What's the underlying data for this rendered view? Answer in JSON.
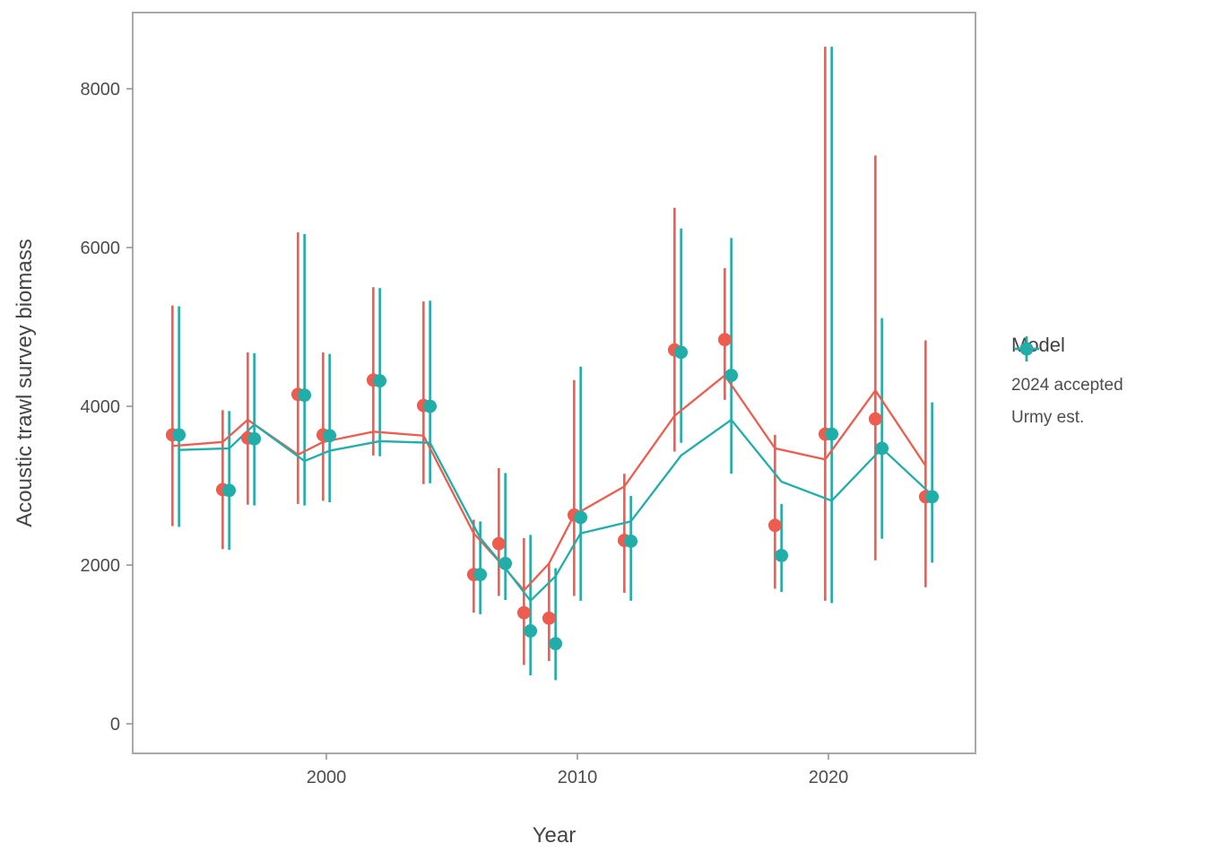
{
  "axes": {
    "x": {
      "label": "Year",
      "ticks": [
        {
          "value": 2000,
          "label": "2000"
        },
        {
          "value": 2010,
          "label": "2010"
        },
        {
          "value": 2020,
          "label": "2020"
        }
      ]
    },
    "y": {
      "label": "Acoustic trawl survey biomass",
      "ticks": [
        {
          "value": 0,
          "label": "0"
        },
        {
          "value": 2000,
          "label": "2000"
        },
        {
          "value": 4000,
          "label": "4000"
        },
        {
          "value": 6000,
          "label": "6000"
        },
        {
          "value": 8000,
          "label": "8000"
        }
      ]
    }
  },
  "legend": {
    "title": "Model",
    "items": [
      {
        "label": "2024 accepted",
        "color": "#ED5C4E",
        "icon": "pointrange-key-icon"
      },
      {
        "label": "Urmy est.",
        "color": "#21AEA9",
        "icon": "pointrange-key-icon"
      }
    ]
  },
  "chart_data": {
    "type": "pointrange+line",
    "title": "",
    "xlabel": "Year",
    "ylabel": "Acoustic trawl survey biomass",
    "x": [
      1994,
      1996,
      1997,
      1999,
      2000,
      2002,
      2004,
      2006,
      2007,
      2008,
      2009,
      2010,
      2012,
      2014,
      2016,
      2018,
      2020,
      2022,
      2024
    ],
    "xlim": [
      1992.3,
      2025.6
    ],
    "ylim": [
      -370,
      8960
    ],
    "grid": false,
    "legend_position": "right",
    "dodge_years": 0.13,
    "series": [
      {
        "name": "2024 accepted",
        "color": "#ED5C4E",
        "points": [
          3640,
          2950,
          3600,
          4150,
          3640,
          4330,
          4010,
          1880,
          2270,
          1400,
          1330,
          2630,
          2310,
          4710,
          4840,
          2500,
          3650,
          3840,
          2860
        ],
        "ci_low": [
          2490,
          2200,
          2760,
          2770,
          2810,
          3380,
          3020,
          1400,
          1610,
          740,
          790,
          1610,
          1650,
          3430,
          4080,
          1700,
          1550,
          2060,
          1720
        ],
        "ci_high": [
          5270,
          3950,
          4680,
          6190,
          4680,
          5500,
          5320,
          2570,
          3220,
          2340,
          2020,
          4330,
          3150,
          6500,
          5740,
          3640,
          8530,
          7160,
          4830
        ],
        "fit_line": [
          3500,
          3550,
          3830,
          3390,
          3550,
          3680,
          3630,
          2400,
          2050,
          1680,
          2020,
          2630,
          2990,
          3880,
          4390,
          3470,
          3330,
          4200,
          3250
        ]
      },
      {
        "name": "Urmy est.",
        "color": "#21AEA9",
        "points": [
          3640,
          2940,
          3590,
          4140,
          3630,
          4320,
          4000,
          1880,
          2020,
          1170,
          1010,
          2600,
          2300,
          4680,
          4390,
          2120,
          3650,
          3470,
          2860
        ],
        "ci_low": [
          2480,
          2190,
          2750,
          2750,
          2790,
          3370,
          3030,
          1380,
          1560,
          610,
          550,
          1550,
          1550,
          3540,
          3150,
          1660,
          1520,
          2330,
          2030
        ],
        "ci_high": [
          5260,
          3940,
          4670,
          6170,
          4660,
          5490,
          5330,
          2550,
          3160,
          2380,
          1960,
          4500,
          2870,
          6240,
          6120,
          2770,
          8530,
          5110,
          4050
        ],
        "fit_line": [
          3450,
          3470,
          3770,
          3310,
          3440,
          3560,
          3540,
          2340,
          1960,
          1550,
          1860,
          2400,
          2550,
          3380,
          3830,
          3050,
          2810,
          3470,
          2880
        ]
      }
    ]
  }
}
